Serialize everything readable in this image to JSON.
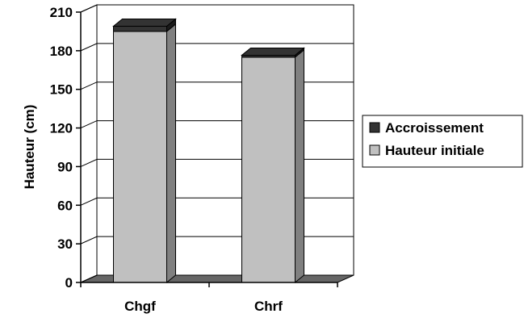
{
  "chart_data": {
    "type": "bar",
    "stacked": true,
    "three_d": true,
    "title": "",
    "xlabel": "",
    "ylabel": "Hauteur (cm)",
    "categories": [
      "Chgf",
      "Chrf"
    ],
    "series": [
      {
        "name": "Hauteur initiale",
        "values": [
          195,
          175
        ],
        "color": "#c0c0c0"
      },
      {
        "name": "Accroissement",
        "values": [
          4,
          1.5
        ],
        "color": "#333333"
      }
    ],
    "ylim": [
      0,
      210
    ],
    "yticks": [
      "0",
      "30",
      "60",
      "90",
      "120",
      "150",
      "180",
      "210"
    ],
    "grid": true,
    "legend_position": "right"
  }
}
